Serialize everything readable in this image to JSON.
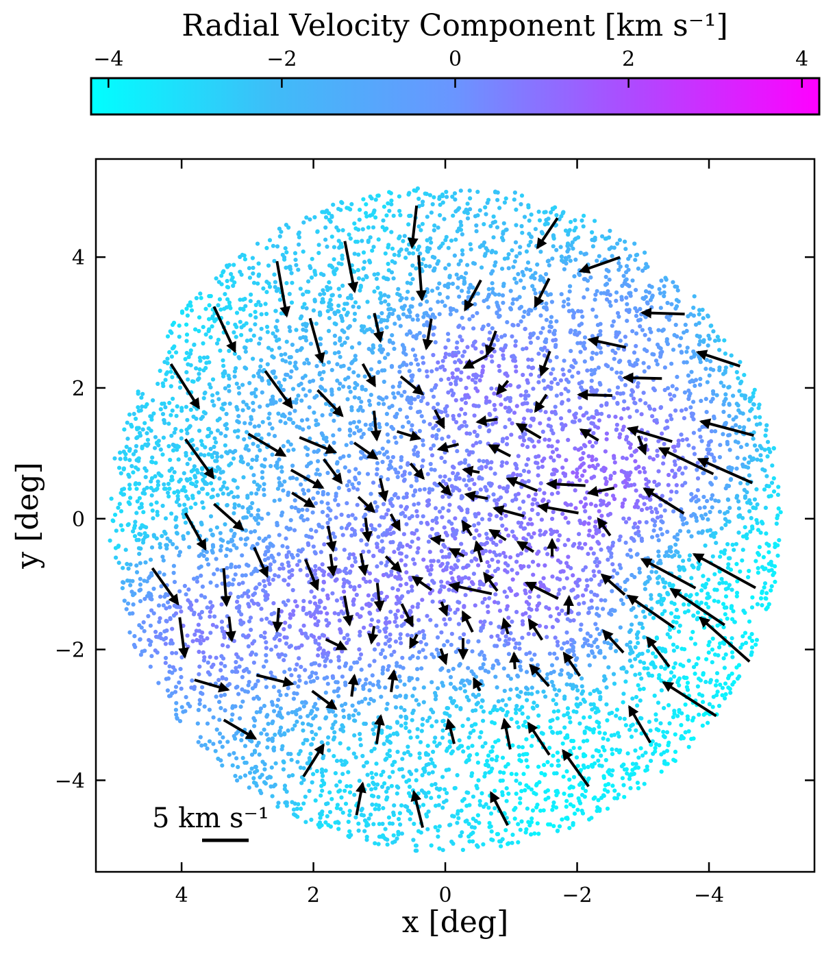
{
  "chart_data": {
    "type": "scatter",
    "subtype": "velocity-vector-field",
    "xlabel": "x [deg]",
    "ylabel": "y [deg]",
    "xlim": [
      5.3,
      -5.6
    ],
    "ylim": [
      -5.4,
      5.5
    ],
    "x_ticks": [
      4,
      2,
      0,
      -2,
      -4
    ],
    "x_tick_labels": [
      "4",
      "2",
      "0",
      "−2",
      "−4"
    ],
    "y_ticks": [
      4,
      2,
      0,
      -2,
      -4
    ],
    "y_tick_labels": [
      "4",
      "2",
      "0",
      "−2",
      "−4"
    ],
    "grid": false,
    "field_radius_deg": 5.0,
    "colorbar": {
      "title": "Radial Velocity Component [km s⁻¹]",
      "range": [
        -4.2,
        4.2
      ],
      "ticks": [
        -4,
        -2,
        0,
        2,
        4
      ],
      "tick_labels": [
        "−4",
        "−2",
        "0",
        "2",
        "4"
      ],
      "colormap": [
        "#00ffff",
        "#3fbcf8",
        "#6a95ff",
        "#b048ff",
        "#ff00ff"
      ],
      "placement": "top"
    },
    "scale_bar": {
      "label": "5 km s⁻¹",
      "value_kms": 5,
      "placement": "bottom-left"
    },
    "color_regions": [
      {
        "x": 1.9,
        "y": -1.4,
        "rv": 1.4
      },
      {
        "x": 3.8,
        "y": -1.9,
        "rv": 1.5
      },
      {
        "x": 0.5,
        "y": -0.8,
        "rv": 1.4
      },
      {
        "x": -1.4,
        "y": -1.1,
        "rv": 1.6
      },
      {
        "x": -2.2,
        "y": 0.6,
        "rv": 2.0
      },
      {
        "x": -3.1,
        "y": 1.0,
        "rv": 1.4
      },
      {
        "x": -0.6,
        "y": 2.3,
        "rv": 1.6
      },
      {
        "x": -0.6,
        "y": 0.4,
        "rv": 0.8
      },
      {
        "x": 1.0,
        "y": 0.0,
        "rv": 0.3
      },
      {
        "x": -2.5,
        "y": 2.8,
        "rv": 0.5
      },
      {
        "x": 3.8,
        "y": 3.6,
        "rv": -3.2
      },
      {
        "x": 4.6,
        "y": 1.5,
        "rv": -2.5
      },
      {
        "x": -4.4,
        "y": -1.4,
        "rv": -3.6
      },
      {
        "x": -4.6,
        "y": -2.3,
        "rv": -3.8
      },
      {
        "x": -1.5,
        "y": -4.0,
        "rv": -3.8
      },
      {
        "x": 0.4,
        "y": -4.6,
        "rv": -2.8
      },
      {
        "x": -0.6,
        "y": 4.4,
        "rv": -2.0
      },
      {
        "x": 2.6,
        "y": 4.3,
        "rv": -2.2
      },
      {
        "x": 3.6,
        "y": -3.8,
        "rv": -1.2
      },
      {
        "x": 2.2,
        "y": 1.8,
        "rv": -1.2
      }
    ],
    "vectors": [
      {
        "x": 0.47,
        "y": 4.47,
        "vx": 0.1,
        "vy": -0.89
      },
      {
        "x": -1.55,
        "y": 4.37,
        "vx": 0.43,
        "vy": -0.64
      },
      {
        "x": -2.35,
        "y": 3.89,
        "vx": 0.85,
        "vy": -0.3
      },
      {
        "x": 1.45,
        "y": 3.86,
        "vx": -0.21,
        "vy": -1.08
      },
      {
        "x": 0.38,
        "y": 3.69,
        "vx": -0.07,
        "vy": -0.95
      },
      {
        "x": -0.42,
        "y": 3.42,
        "vx": 0.34,
        "vy": -0.64
      },
      {
        "x": -1.47,
        "y": 3.46,
        "vx": 0.3,
        "vy": -0.6
      },
      {
        "x": -3.31,
        "y": 3.14,
        "vx": 0.91,
        "vy": 0.03
      },
      {
        "x": 2.48,
        "y": 3.52,
        "vx": -0.21,
        "vy": -1.17
      },
      {
        "x": 3.35,
        "y": 2.9,
        "vx": -0.45,
        "vy": -0.96
      },
      {
        "x": 1.03,
        "y": 2.93,
        "vx": -0.13,
        "vy": -0.6
      },
      {
        "x": 0.25,
        "y": 2.83,
        "vx": 0.11,
        "vy": -0.64
      },
      {
        "x": -0.7,
        "y": 2.69,
        "vx": 0.19,
        "vy": -0.51
      },
      {
        "x": -2.46,
        "y": 2.68,
        "vx": 0.79,
        "vy": 0.17
      },
      {
        "x": 1.96,
        "y": 2.73,
        "vx": -0.26,
        "vy": -0.94
      },
      {
        "x": -1.52,
        "y": 2.38,
        "vx": 0.19,
        "vy": -0.51
      },
      {
        "x": -0.46,
        "y": 2.4,
        "vx": 0.49,
        "vy": -0.26
      },
      {
        "x": -4.15,
        "y": 2.44,
        "vx": 0.91,
        "vy": 0.3
      },
      {
        "x": -3.0,
        "y": 2.15,
        "vx": 0.81,
        "vy": 0.02
      },
      {
        "x": 1.16,
        "y": 2.2,
        "vx": -0.26,
        "vy": -0.47
      },
      {
        "x": 0.51,
        "y": 2.04,
        "vx": -0.47,
        "vy": -0.38
      },
      {
        "x": -0.87,
        "y": 2.01,
        "vx": 0.23,
        "vy": -0.28
      },
      {
        "x": -2.28,
        "y": 1.89,
        "vx": 0.72,
        "vy": 0.02
      },
      {
        "x": 3.95,
        "y": 2.03,
        "vx": -0.6,
        "vy": -0.94
      },
      {
        "x": 2.53,
        "y": 1.98,
        "vx": -0.57,
        "vy": -0.78
      },
      {
        "x": 1.75,
        "y": 1.77,
        "vx": -0.53,
        "vy": -0.55
      },
      {
        "x": -1.45,
        "y": 1.77,
        "vx": 0.24,
        "vy": -0.36
      },
      {
        "x": 1.06,
        "y": 1.43,
        "vx": -0.06,
        "vy": -0.62
      },
      {
        "x": 0.09,
        "y": 1.53,
        "vx": -0.19,
        "vy": -0.38
      },
      {
        "x": -0.64,
        "y": 1.5,
        "vx": 0.43,
        "vy": -0.06
      },
      {
        "x": 0.56,
        "y": 1.28,
        "vx": -0.49,
        "vy": -0.15
      },
      {
        "x": -3.11,
        "y": 1.28,
        "vx": 0.94,
        "vy": 0.28
      },
      {
        "x": -4.28,
        "y": 1.38,
        "vx": 1.13,
        "vy": 0.3
      },
      {
        "x": -1.27,
        "y": 1.34,
        "vx": 0.51,
        "vy": 0.3
      },
      {
        "x": -2.19,
        "y": 1.28,
        "vx": 0.38,
        "vy": 0.23
      },
      {
        "x": -2.98,
        "y": 1.13,
        "vx": -0.15,
        "vy": -0.38
      },
      {
        "x": 1.94,
        "y": 1.13,
        "vx": -0.77,
        "vy": -0.32
      },
      {
        "x": -0.05,
        "y": 1.1,
        "vx": 0.43,
        "vy": -0.11
      },
      {
        "x": 2.71,
        "y": 1.13,
        "vx": -0.79,
        "vy": -0.47
      },
      {
        "x": 1.21,
        "y": 1.04,
        "vx": -0.49,
        "vy": -0.34
      },
      {
        "x": -0.83,
        "y": 1.04,
        "vx": 0.45,
        "vy": 0.23
      },
      {
        "x": -3.66,
        "y": 0.88,
        "vx": 1.15,
        "vy": 0.55
      },
      {
        "x": 1.71,
        "y": 0.73,
        "vx": -0.38,
        "vy": -0.51
      },
      {
        "x": 3.73,
        "y": 0.92,
        "vx": -0.6,
        "vy": -0.83
      },
      {
        "x": 0.43,
        "y": 0.73,
        "vx": -0.28,
        "vy": -0.32
      },
      {
        "x": -0.4,
        "y": 0.73,
        "vx": 0.34,
        "vy": 0.06
      },
      {
        "x": -1.17,
        "y": 0.52,
        "vx": 0.64,
        "vy": 0.26
      },
      {
        "x": -4.25,
        "y": 0.73,
        "vx": 1.15,
        "vy": 0.51
      },
      {
        "x": 2.1,
        "y": 0.61,
        "vx": -0.68,
        "vy": -0.38
      },
      {
        "x": -1.84,
        "y": 0.52,
        "vx": 0.81,
        "vy": 0.04
      },
      {
        "x": 0.95,
        "y": 0.45,
        "vx": -0.11,
        "vy": -0.47
      },
      {
        "x": 0.01,
        "y": 0.46,
        "vx": -0.26,
        "vy": -0.26
      },
      {
        "x": -0.48,
        "y": 0.34,
        "vx": 0.47,
        "vy": 0.09
      },
      {
        "x": -2.37,
        "y": 0.43,
        "vx": 0.55,
        "vy": -0.11
      },
      {
        "x": -3.32,
        "y": 0.27,
        "vx": 0.85,
        "vy": 0.53
      },
      {
        "x": 2.16,
        "y": 0.29,
        "vx": -0.47,
        "vy": -0.3
      },
      {
        "x": 1.2,
        "y": 0.22,
        "vx": -0.34,
        "vy": -0.32
      },
      {
        "x": -0.97,
        "y": 0.1,
        "vx": 0.64,
        "vy": 0.17
      },
      {
        "x": -1.72,
        "y": 0.14,
        "vx": 0.85,
        "vy": 0.15
      },
      {
        "x": 3.29,
        "y": 0.03,
        "vx": -0.62,
        "vy": -0.55
      },
      {
        "x": 1.19,
        "y": -0.16,
        "vx": -0.06,
        "vy": -0.49
      },
      {
        "x": 0.76,
        "y": -0.05,
        "vx": -0.19,
        "vy": -0.34
      },
      {
        "x": -0.33,
        "y": -0.15,
        "vx": 0.19,
        "vy": 0.3
      },
      {
        "x": -2.41,
        "y": -0.13,
        "vx": 0.26,
        "vy": 0.36
      },
      {
        "x": 0.11,
        "y": -0.32,
        "vx": 0.28,
        "vy": 0.04
      },
      {
        "x": 1.74,
        "y": -0.3,
        "vx": -0.11,
        "vy": -0.53
      },
      {
        "x": -1.62,
        "y": -0.45,
        "vx": 0.0,
        "vy": 0.36
      },
      {
        "x": -0.51,
        "y": -0.51,
        "vx": 0.11,
        "vy": 0.43
      },
      {
        "x": -0.8,
        "y": -0.25,
        "vx": 0.34,
        "vy": 0.21
      },
      {
        "x": -1.22,
        "y": -0.43,
        "vx": 0.34,
        "vy": 0.21
      },
      {
        "x": 0.79,
        "y": -0.69,
        "vx": -0.32,
        "vy": -0.32
      },
      {
        "x": 1.25,
        "y": -0.69,
        "vx": -0.09,
        "vy": -0.45
      },
      {
        "x": -0.18,
        "y": -0.52,
        "vx": 0.3,
        "vy": 0.15
      },
      {
        "x": 3.79,
        "y": -0.19,
        "vx": -0.43,
        "vy": -0.77
      },
      {
        "x": -3.39,
        "y": -0.84,
        "vx": 1.15,
        "vy": 0.62
      },
      {
        "x": -4.24,
        "y": -0.8,
        "vx": 1.32,
        "vy": 0.72
      },
      {
        "x": 2.8,
        "y": -0.66,
        "vx": -0.28,
        "vy": -0.62
      },
      {
        "x": 1.72,
        "y": -0.7,
        "vx": -0.06,
        "vy": -0.45
      },
      {
        "x": -0.69,
        "y": -0.97,
        "vx": 0.28,
        "vy": 0.38
      },
      {
        "x": -2.55,
        "y": -1.01,
        "vx": 0.49,
        "vy": 0.43
      },
      {
        "x": 2.03,
        "y": -0.85,
        "vx": -0.26,
        "vy": -0.64
      },
      {
        "x": 0.35,
        "y": -0.99,
        "vx": 0.4,
        "vy": 0.28
      },
      {
        "x": -0.39,
        "y": -1.08,
        "vx": 0.89,
        "vy": 0.19
      },
      {
        "x": 3.34,
        "y": -1.04,
        "vx": -0.06,
        "vy": -0.79
      },
      {
        "x": -1.47,
        "y": -1.1,
        "vx": 0.68,
        "vy": 0.34
      },
      {
        "x": 1.01,
        "y": -1.19,
        "vx": -0.06,
        "vy": -0.58
      },
      {
        "x": 4.25,
        "y": -1.03,
        "vx": -0.55,
        "vy": -0.77
      },
      {
        "x": 1.49,
        "y": -1.4,
        "vx": -0.11,
        "vy": -0.62
      },
      {
        "x": -1.87,
        "y": -1.33,
        "vx": -0.02,
        "vy": 0.38
      },
      {
        "x": -3.12,
        "y": -1.42,
        "vx": 0.98,
        "vy": 0.68
      },
      {
        "x": -3.83,
        "y": -1.35,
        "vx": 1.15,
        "vy": 0.77
      },
      {
        "x": 0.02,
        "y": -1.37,
        "vx": -0.11,
        "vy": -0.28
      },
      {
        "x": 2.54,
        "y": -1.54,
        "vx": 0.04,
        "vy": -0.49
      },
      {
        "x": 0.58,
        "y": -1.47,
        "vx": -0.23,
        "vy": -0.47
      },
      {
        "x": -0.34,
        "y": -1.58,
        "vx": 0.21,
        "vy": 0.43
      },
      {
        "x": -0.92,
        "y": -1.65,
        "vx": 0.09,
        "vy": 0.32
      },
      {
        "x": -1.37,
        "y": -1.7,
        "vx": 0.28,
        "vy": 0.43
      },
      {
        "x": 3.26,
        "y": -1.68,
        "vx": -0.06,
        "vy": -0.51
      },
      {
        "x": -2.55,
        "y": -1.88,
        "vx": 0.43,
        "vy": 0.47
      },
      {
        "x": -4.24,
        "y": -1.85,
        "vx": 1.06,
        "vy": 0.94
      },
      {
        "x": -3.23,
        "y": -2.04,
        "vx": 0.47,
        "vy": 0.62
      },
      {
        "x": 1.66,
        "y": -1.92,
        "vx": -0.43,
        "vy": -0.21
      },
      {
        "x": 1.1,
        "y": -1.77,
        "vx": 0.06,
        "vy": -0.36
      },
      {
        "x": 0.48,
        "y": -1.87,
        "vx": 0.15,
        "vy": -0.28
      },
      {
        "x": -0.27,
        "y": -1.98,
        "vx": 0.0,
        "vy": -0.43
      },
      {
        "x": 3.99,
        "y": -1.81,
        "vx": -0.11,
        "vy": -0.85
      },
      {
        "x": -1.05,
        "y": -2.18,
        "vx": 0.02,
        "vy": 0.34
      },
      {
        "x": -1.92,
        "y": -2.23,
        "vx": 0.34,
        "vy": 0.49
      },
      {
        "x": 0.03,
        "y": -2.1,
        "vx": -0.11,
        "vy": -0.32
      },
      {
        "x": -1.43,
        "y": -2.4,
        "vx": 0.4,
        "vy": 0.45
      },
      {
        "x": 1.4,
        "y": -2.56,
        "vx": -0.06,
        "vy": 0.45
      },
      {
        "x": -0.48,
        "y": -2.54,
        "vx": 0.13,
        "vy": 0.26
      },
      {
        "x": 0.8,
        "y": -2.49,
        "vx": -0.06,
        "vy": 0.45
      },
      {
        "x": 2.59,
        "y": -2.46,
        "vx": -0.77,
        "vy": -0.19
      },
      {
        "x": 1.84,
        "y": -2.77,
        "vx": -0.51,
        "vy": -0.38
      },
      {
        "x": 3.55,
        "y": -2.54,
        "vx": -0.72,
        "vy": -0.21
      },
      {
        "x": 3.12,
        "y": -3.22,
        "vx": -0.68,
        "vy": -0.4
      },
      {
        "x": -0.09,
        "y": -3.26,
        "vx": 0.13,
        "vy": 0.51
      },
      {
        "x": -1.42,
        "y": -3.37,
        "vx": 0.45,
        "vy": 0.68
      },
      {
        "x": -2.95,
        "y": -3.15,
        "vx": 0.45,
        "vy": 0.77
      },
      {
        "x": -3.71,
        "y": -2.76,
        "vx": 1.13,
        "vy": 0.72
      },
      {
        "x": 1.01,
        "y": -3.23,
        "vx": -0.09,
        "vy": 0.6
      },
      {
        "x": -1.98,
        "y": -3.82,
        "vx": 0.55,
        "vy": 0.77
      },
      {
        "x": 2.0,
        "y": -3.7,
        "vx": -0.43,
        "vy": 0.68
      },
      {
        "x": -0.94,
        "y": -3.3,
        "vx": 0.13,
        "vy": 0.64
      },
      {
        "x": 1.3,
        "y": -4.29,
        "vx": -0.13,
        "vy": 0.68
      },
      {
        "x": 0.41,
        "y": -4.45,
        "vx": 0.19,
        "vy": 0.77
      },
      {
        "x": -0.82,
        "y": -4.44,
        "vx": 0.36,
        "vy": 0.7
      }
    ]
  }
}
